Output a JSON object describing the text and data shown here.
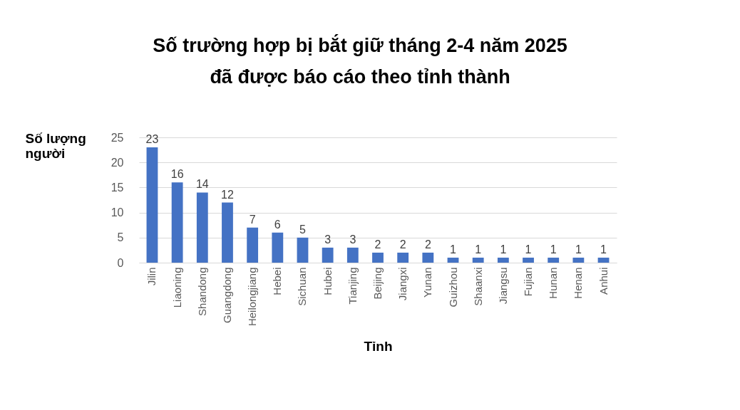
{
  "chart_data": {
    "type": "bar",
    "title": "Số trường hợp bị bắt giữ tháng 2-4 năm 2025\nđã được báo cáo theo tỉnh thành",
    "xlabel": "Tỉnh",
    "ylabel": "Số lượng người",
    "categories": [
      "Jilin",
      "Liaoning",
      "Shandong",
      "Guangdong",
      "Heilongjiang",
      "Hebei",
      "Sichuan",
      "Hubei",
      "Tianjing",
      "Beijing",
      "Jiangxi",
      "Yunan",
      "Guizhou",
      "Shaanxi",
      "Jiangsu",
      "Fujian",
      "Hunan",
      "Henan",
      "Anhui"
    ],
    "values": [
      23,
      16,
      14,
      12,
      7,
      6,
      5,
      3,
      3,
      2,
      2,
      2,
      1,
      1,
      1,
      1,
      1,
      1,
      1
    ],
    "color": "#4472c4",
    "ylim": [
      0,
      25
    ],
    "yticks": [
      0,
      5,
      10,
      15,
      20,
      25
    ],
    "grid": "y",
    "data_labels": true
  }
}
